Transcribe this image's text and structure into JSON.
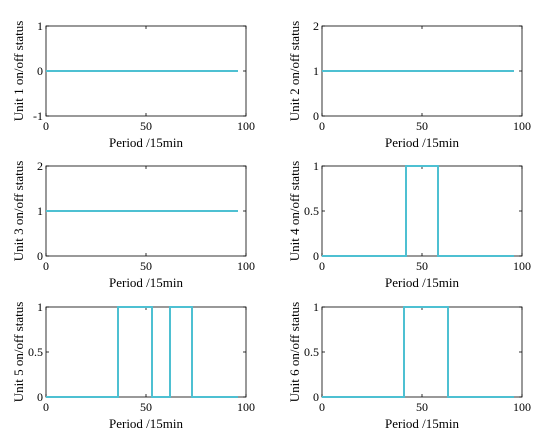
{
  "chart_data": [
    {
      "type": "line",
      "ylabel": "Unit 1 on/off status",
      "xlabel": "Period /15min",
      "xlim": [
        0,
        100
      ],
      "ylim": [
        -1,
        1
      ],
      "xticks": [
        0,
        50,
        100
      ],
      "yticks": [
        -1,
        0,
        1
      ],
      "line_color": "#4ec0d2",
      "x": [
        0,
        96
      ],
      "y": [
        0,
        0
      ]
    },
    {
      "type": "line",
      "ylabel": "Unit 2 on/off status",
      "xlabel": "Period /15min",
      "xlim": [
        0,
        100
      ],
      "ylim": [
        0,
        2
      ],
      "xticks": [
        0,
        50,
        100
      ],
      "yticks": [
        0,
        1,
        2
      ],
      "line_color": "#4ec0d2",
      "x": [
        0,
        96
      ],
      "y": [
        1,
        1
      ]
    },
    {
      "type": "line",
      "ylabel": "Unit 3 on/off status",
      "xlabel": "Period /15min",
      "xlim": [
        0,
        100
      ],
      "ylim": [
        0,
        2
      ],
      "xticks": [
        0,
        50,
        100
      ],
      "yticks": [
        0,
        1,
        2
      ],
      "line_color": "#4ec0d2",
      "x": [
        0,
        96
      ],
      "y": [
        1,
        1
      ]
    },
    {
      "type": "line",
      "ylabel": "Unit 4 on/off status",
      "xlabel": "Period /15min",
      "xlim": [
        0,
        100
      ],
      "ylim": [
        0,
        1
      ],
      "xticks": [
        0,
        50,
        100
      ],
      "yticks": [
        0,
        0.5,
        1
      ],
      "line_color": "#4ec0d2",
      "x": [
        0,
        42,
        42,
        58,
        58,
        96
      ],
      "y": [
        0,
        0,
        1,
        1,
        0,
        0
      ]
    },
    {
      "type": "line",
      "ylabel": "Unit 5 on/off status",
      "xlabel": "Period /15min",
      "xlim": [
        0,
        100
      ],
      "ylim": [
        0,
        1
      ],
      "xticks": [
        0,
        50,
        100
      ],
      "yticks": [
        0,
        0.5,
        1
      ],
      "line_color": "#4ec0d2",
      "x": [
        0,
        36,
        36,
        53,
        53,
        62,
        62,
        73,
        73,
        96
      ],
      "y": [
        0,
        0,
        1,
        1,
        0,
        0,
        1,
        1,
        0,
        0
      ]
    },
    {
      "type": "line",
      "ylabel": "Unit 6 on/off status",
      "xlabel": "Period /15min",
      "xlim": [
        0,
        100
      ],
      "ylim": [
        0,
        1
      ],
      "xticks": [
        0,
        50,
        100
      ],
      "yticks": [
        0,
        0.5,
        1
      ],
      "line_color": "#4ec0d2",
      "x": [
        0,
        41,
        41,
        63,
        63,
        96
      ],
      "y": [
        0,
        0,
        1,
        1,
        0,
        0
      ]
    }
  ]
}
